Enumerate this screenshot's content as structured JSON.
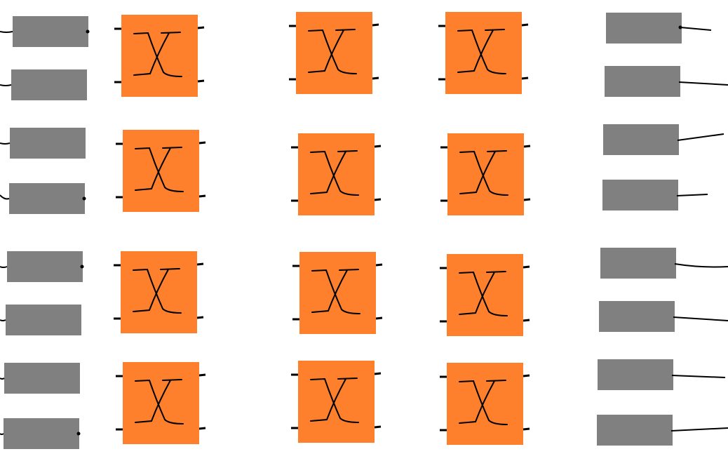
{
  "colors": {
    "background": "#ffffff",
    "register": "#808080",
    "switch": "#fe7f2c",
    "wire": "#000000"
  },
  "diagram": {
    "input_registers": {
      "count": 8,
      "color": "#808080"
    },
    "switch_columns": [
      {
        "switch_count": 4,
        "switch_icon": "crossover-x-icon"
      },
      {
        "switch_count": 4,
        "switch_icon": "crossover-x-icon"
      },
      {
        "switch_count": 4,
        "switch_icon": "crossover-x-icon"
      }
    ],
    "output_registers": {
      "count": 8,
      "color": "#808080"
    }
  }
}
